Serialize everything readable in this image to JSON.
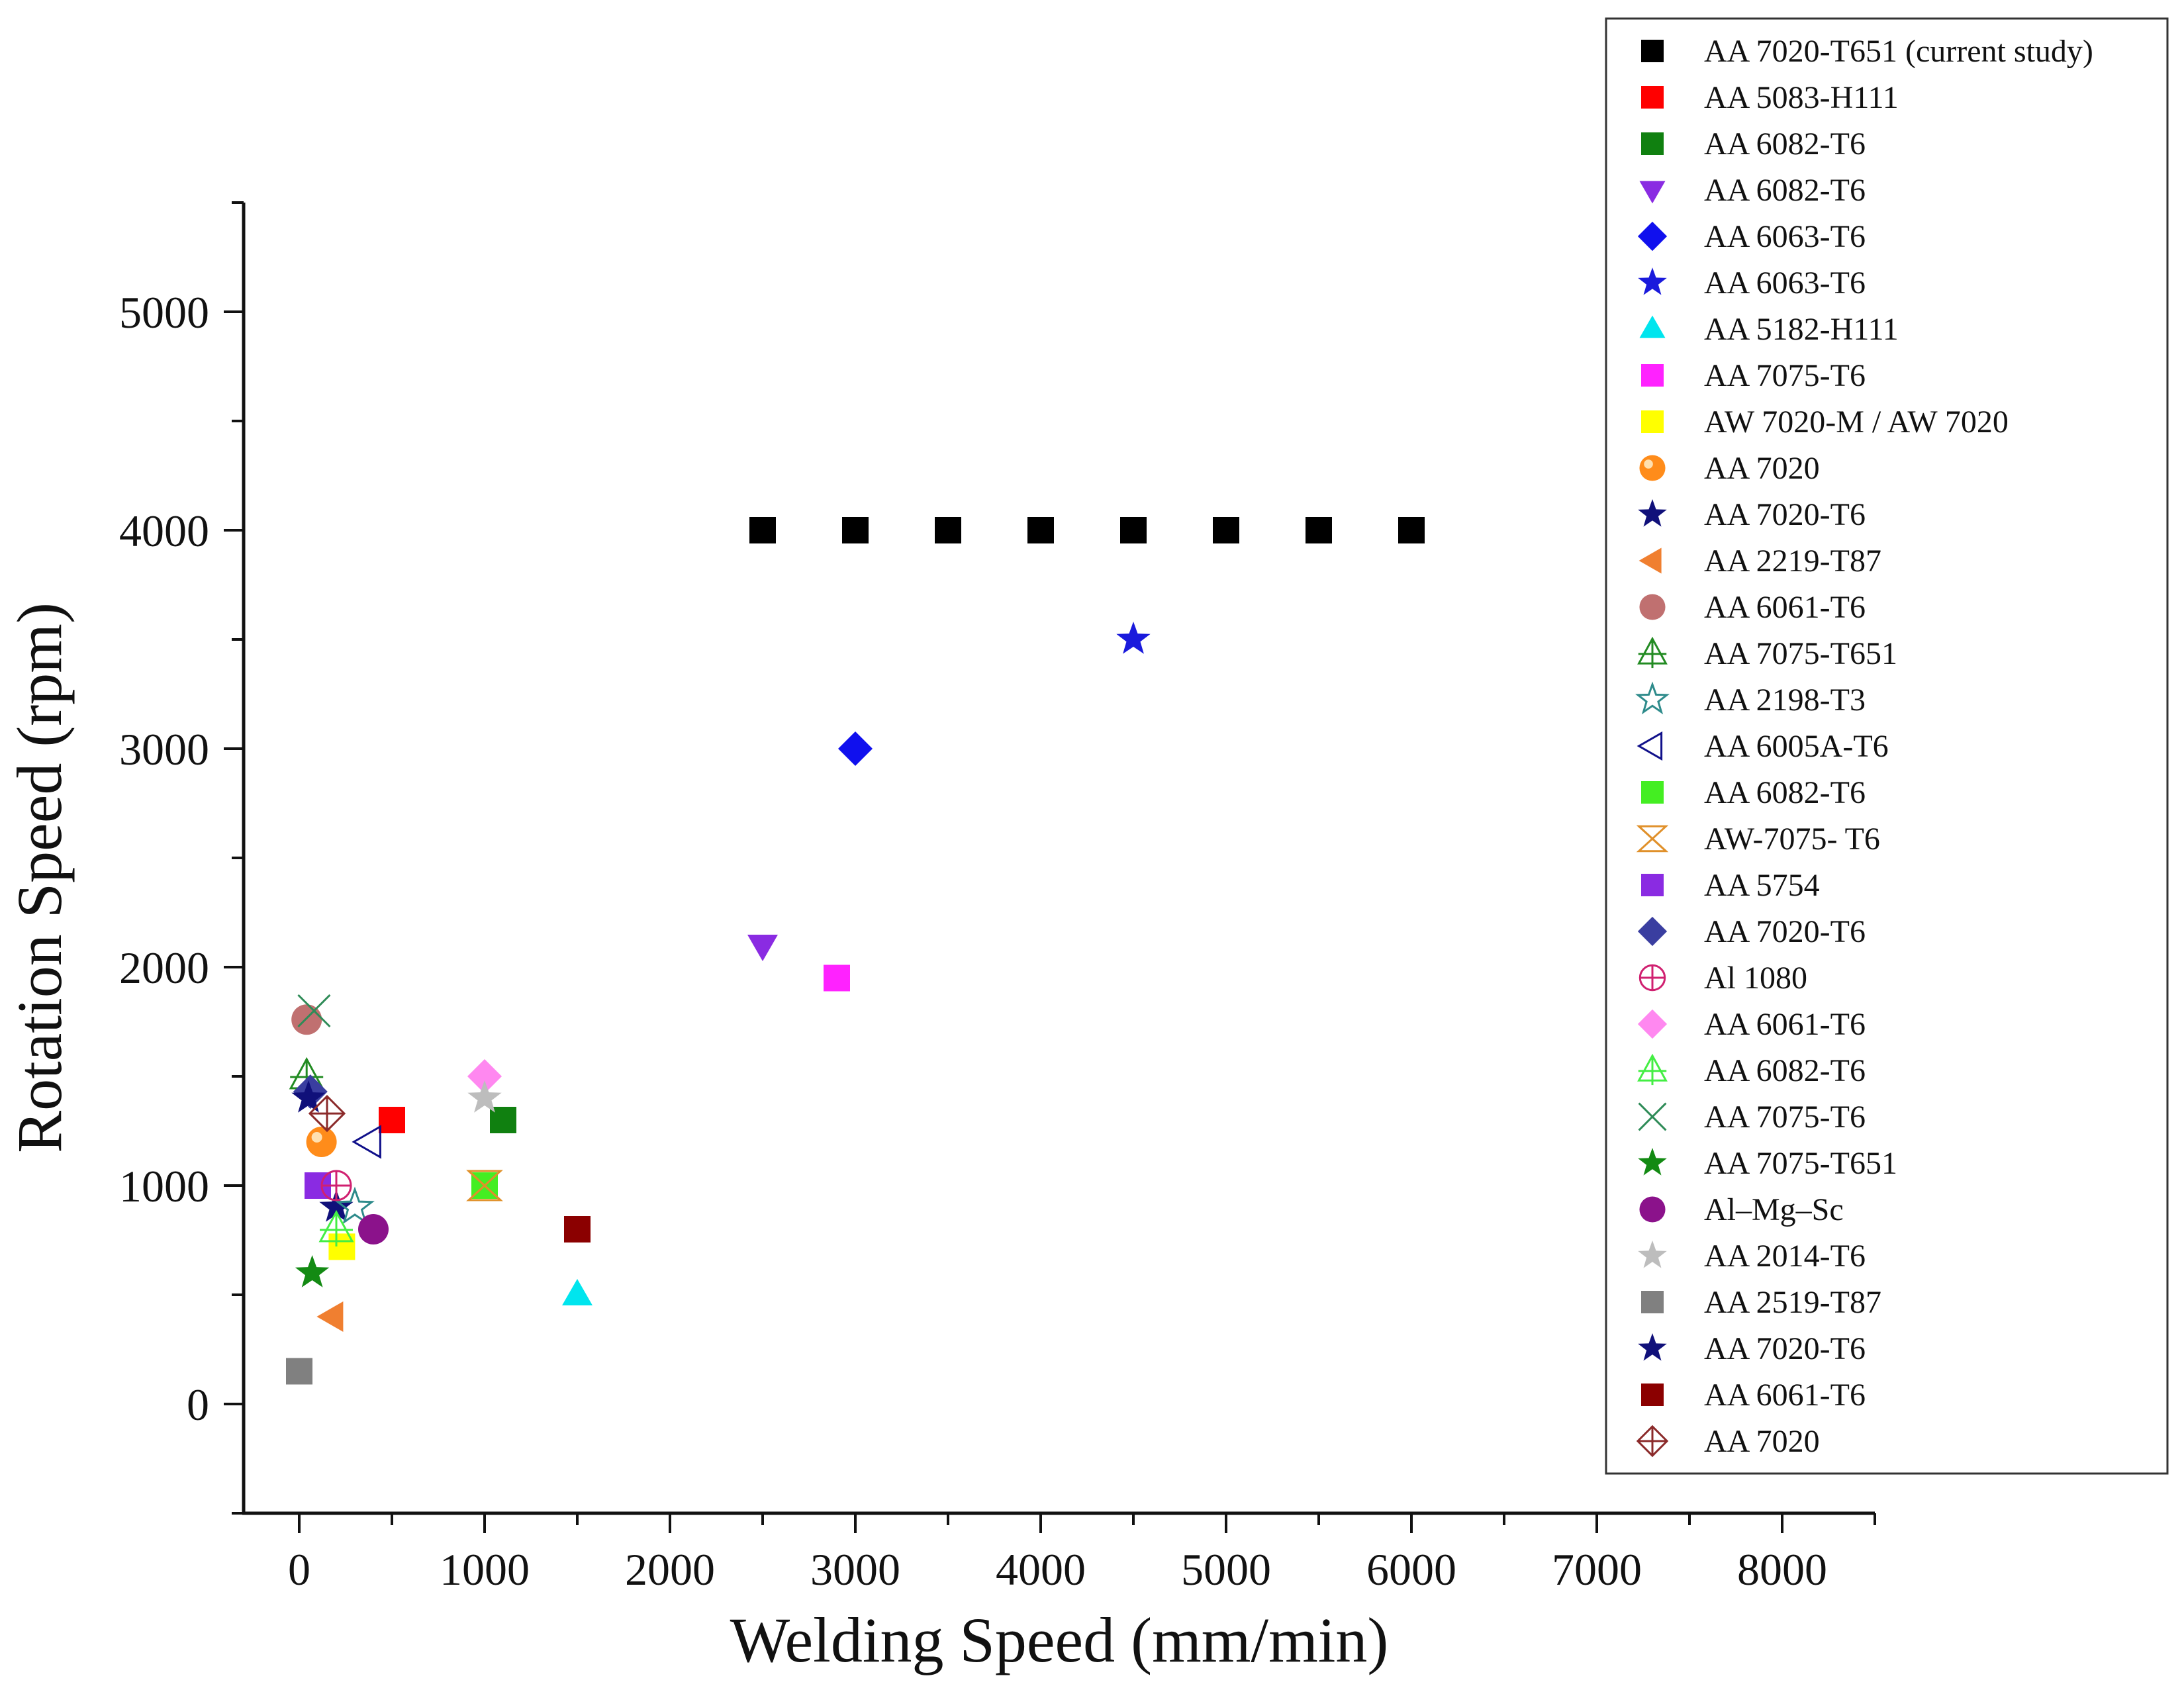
{
  "chart_data": {
    "type": "scatter",
    "xlabel": "Welding Speed (mm/min)",
    "ylabel": "Rotation Speed (rpm)",
    "xlim": [
      -300,
      8500
    ],
    "ylim": [
      -500,
      5500
    ],
    "xticks": [
      0,
      1000,
      2000,
      3000,
      4000,
      5000,
      6000,
      7000,
      8000
    ],
    "yticks": [
      0,
      1000,
      2000,
      3000,
      4000,
      5000
    ],
    "legend_position": "right",
    "series": [
      {
        "name": "AA 7020-T651 (current study)",
        "marker": "square",
        "color": "#000000",
        "filled": true,
        "points": [
          [
            2500,
            4000
          ],
          [
            3000,
            4000
          ],
          [
            3500,
            4000
          ],
          [
            4000,
            4000
          ],
          [
            4500,
            4000
          ],
          [
            5000,
            4000
          ],
          [
            5500,
            4000
          ],
          [
            6000,
            4000
          ]
        ]
      },
      {
        "name": "AA 5083-H111",
        "marker": "square",
        "color": "#ff0000",
        "filled": true,
        "points": [
          [
            500,
            1300
          ]
        ]
      },
      {
        "name": "AA 6082-T6",
        "marker": "square",
        "color": "#108010",
        "filled": true,
        "points": [
          [
            1100,
            1300
          ]
        ]
      },
      {
        "name": "AA 6082-T6",
        "marker": "triangle-down",
        "color": "#8a2be2",
        "filled": true,
        "points": [
          [
            2500,
            2100
          ]
        ]
      },
      {
        "name": "AA 6063-T6",
        "marker": "diamond",
        "color": "#1010ee",
        "filled": true,
        "points": [
          [
            3000,
            3000
          ]
        ]
      },
      {
        "name": "AA 6063-T6",
        "marker": "star",
        "color": "#1a1adc",
        "filled": true,
        "points": [
          [
            4500,
            3500
          ]
        ]
      },
      {
        "name": "AA 5182-H111",
        "marker": "triangle-up",
        "color": "#00e5ee",
        "filled": true,
        "points": [
          [
            1500,
            500
          ]
        ]
      },
      {
        "name": "AA 7075-T6",
        "marker": "square",
        "color": "#ff22ff",
        "filled": true,
        "points": [
          [
            2900,
            1950
          ]
        ]
      },
      {
        "name": "AW 7020-M / AW 7020",
        "marker": "square",
        "color": "#ffff00",
        "filled": true,
        "points": [
          [
            230,
            720
          ]
        ]
      },
      {
        "name": "AA 7020",
        "marker": "sphere",
        "color": "#ff8c1a",
        "filled": true,
        "points": [
          [
            120,
            1200
          ]
        ]
      },
      {
        "name": "AA 7020-T6",
        "marker": "star",
        "color": "#10107a",
        "filled": true,
        "points": [
          [
            200,
            900
          ]
        ]
      },
      {
        "name": "AA 2219-T87",
        "marker": "triangle-left",
        "color": "#f07f30",
        "filled": true,
        "points": [
          [
            180,
            400
          ]
        ]
      },
      {
        "name": "AA 6061-T6",
        "marker": "circle",
        "color": "#c07070",
        "filled": true,
        "points": [
          [
            40,
            1760
          ]
        ]
      },
      {
        "name": "AA 7075-T651",
        "marker": "tri-cross",
        "color": "#228b22",
        "filled": false,
        "points": [
          [
            40,
            1500
          ]
        ]
      },
      {
        "name": "AA 2198-T3",
        "marker": "star-open",
        "color": "#2e8b8b",
        "filled": false,
        "points": [
          [
            300,
            900
          ]
        ]
      },
      {
        "name": "AA 6005A-T6",
        "marker": "triangle-left-open",
        "color": "#10108a",
        "filled": false,
        "points": [
          [
            380,
            1200
          ]
        ]
      },
      {
        "name": "AA 6082-T6",
        "marker": "square",
        "color": "#44ee22",
        "filled": true,
        "points": [
          [
            1000,
            1000
          ]
        ]
      },
      {
        "name": "AW-7075- T6",
        "marker": "hourglass-x",
        "color": "#e0902a",
        "filled": false,
        "points": [
          [
            1000,
            1000
          ]
        ]
      },
      {
        "name": "AA 5754",
        "marker": "square",
        "color": "#8a2be2",
        "filled": true,
        "points": [
          [
            100,
            1000
          ]
        ]
      },
      {
        "name": "AA 7020-T6",
        "marker": "diamond",
        "color": "#3a3ea0",
        "filled": true,
        "points": [
          [
            60,
            1430
          ]
        ]
      },
      {
        "name": "Al 1080",
        "marker": "circle-cross",
        "color": "#d02070",
        "filled": false,
        "points": [
          [
            200,
            1000
          ]
        ]
      },
      {
        "name": "AA 6061-T6",
        "marker": "diamond",
        "color": "#ff88f0",
        "filled": true,
        "points": [
          [
            1000,
            1500
          ]
        ]
      },
      {
        "name": "AA 6082-T6",
        "marker": "tri-cross",
        "color": "#44ee44",
        "filled": false,
        "points": [
          [
            200,
            800
          ]
        ]
      },
      {
        "name": "AA 7075-T6",
        "marker": "x",
        "color": "#2e8b57",
        "filled": false,
        "points": [
          [
            80,
            1800
          ]
        ]
      },
      {
        "name": "AA 7075-T651",
        "marker": "star",
        "color": "#138a13",
        "filled": true,
        "points": [
          [
            70,
            600
          ]
        ]
      },
      {
        "name": "Al–Mg–Sc",
        "marker": "circle",
        "color": "#8b128b",
        "filled": true,
        "points": [
          [
            400,
            800
          ]
        ]
      },
      {
        "name": "AA 2014-T6",
        "marker": "star",
        "color": "#bdbdbd",
        "filled": true,
        "points": [
          [
            1000,
            1400
          ]
        ]
      },
      {
        "name": "AA 2519-T87",
        "marker": "square",
        "color": "#808080",
        "filled": true,
        "points": [
          [
            0,
            150
          ]
        ]
      },
      {
        "name": "AA 7020-T6",
        "marker": "star",
        "color": "#10107a",
        "filled": true,
        "points": [
          [
            50,
            1400
          ]
        ]
      },
      {
        "name": "AA 6061-T6",
        "marker": "square",
        "color": "#8b0000",
        "filled": true,
        "points": [
          [
            1500,
            800
          ]
        ]
      },
      {
        "name": "AA 7020",
        "marker": "diamond-cross",
        "color": "#8b2a2a",
        "filled": false,
        "points": [
          [
            150,
            1330
          ]
        ]
      }
    ]
  }
}
